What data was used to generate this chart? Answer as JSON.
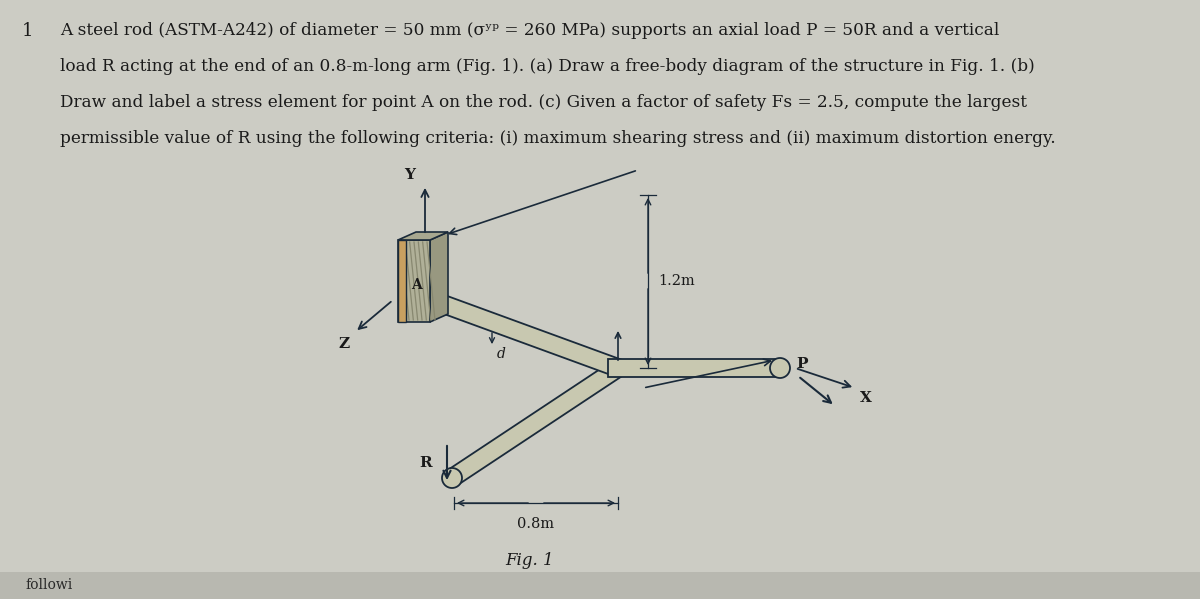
{
  "background_color": "#ccccc4",
  "text_color": "#1a1a1a",
  "problem_number": "1",
  "problem_text_lines": [
    "A steel rod (ASTM-A242) of diameter = 50 mm (σʸᵖ = 260 MPa) supports an axial load P = 50R and a vertical",
    "load R acting at the end of an 0.8-m-long arm (Fig. 1). (a) Draw a free-body diagram of the structure in Fig. 1. (b)",
    "Draw and label a stress element for point A on the rod. (c) Given a factor of safety Fs = 2.5, compute the largest",
    "permissible value of R using the following criteria: (i) maximum shearing stress and (ii) maximum distortion energy."
  ],
  "fig_label": "Fig. 1",
  "label_12m": "1.2m",
  "label_08m": "0.8m",
  "label_Y": "Y",
  "label_Z": "Z",
  "label_X": "X",
  "label_A": "A",
  "label_d": "d",
  "label_R": "R",
  "label_P": "P",
  "line_color": "#1a2a3a",
  "wall_face_color": "#b0b098",
  "wall_side_color": "#989880",
  "wall_hatch_color": "#888870",
  "rod_color": "#c8c8b0",
  "rod_edge_color": "#1a2a3a"
}
